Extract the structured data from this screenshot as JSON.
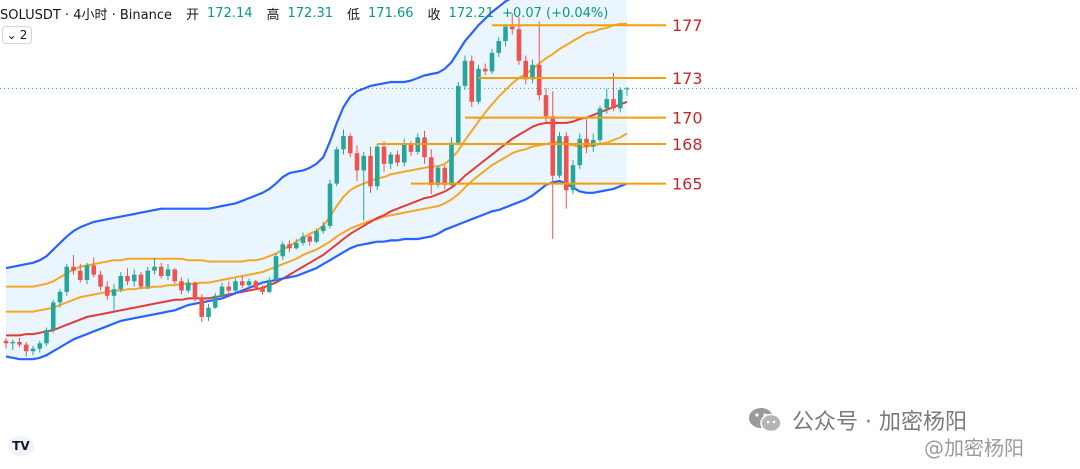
{
  "header": {
    "symbol": "SOLUSDT · 4小时 · Binance",
    "open_label": "开",
    "open": "172.14",
    "high_label": "高",
    "high": "172.31",
    "low_label": "低",
    "low": "171.66",
    "close_label": "收",
    "close": "172.21",
    "change": "+0.07 (+0.04%)",
    "indicator_count": "2"
  },
  "watermark": {
    "line1": "公众号 · 加密杨阳",
    "line2": "@加密杨阳"
  },
  "logo": "TV",
  "colors": {
    "up": "#26a69a",
    "down": "#ef5350",
    "upper_band": "#2962ff",
    "mid_band": "#f5a623",
    "ema": "#e53935",
    "levels": "#f59e0b",
    "level_text": "#c62828",
    "band_fill": "#e3f2fd",
    "price_line": "#26a69a"
  },
  "chart_data": {
    "type": "candlestick",
    "ylim": [
      151,
      180
    ],
    "current_price": 172.21,
    "levels": [
      {
        "label": "177",
        "value": 177,
        "start_index": 72
      },
      {
        "label": "173",
        "value": 173,
        "start_index": 70
      },
      {
        "label": "170",
        "value": 170,
        "start_index": 68
      },
      {
        "label": "168",
        "value": 168,
        "start_index": 55
      },
      {
        "label": "165",
        "value": 165,
        "start_index": 60
      }
    ],
    "candles": [
      [
        153.1,
        153.3,
        152.5,
        152.9
      ],
      [
        152.9,
        153.2,
        152.4,
        153.0
      ],
      [
        153.0,
        153.3,
        152.6,
        152.8
      ],
      [
        152.8,
        153.0,
        151.9,
        152.3
      ],
      [
        152.3,
        152.7,
        152.0,
        152.5
      ],
      [
        152.5,
        153.1,
        152.2,
        152.9
      ],
      [
        152.9,
        154.1,
        152.7,
        153.9
      ],
      [
        153.9,
        156.2,
        153.7,
        156.0
      ],
      [
        156.0,
        157.0,
        155.6,
        156.8
      ],
      [
        156.8,
        158.9,
        156.5,
        158.7
      ],
      [
        158.7,
        159.6,
        158.1,
        158.4
      ],
      [
        158.4,
        158.9,
        157.5,
        157.7
      ],
      [
        157.7,
        159.0,
        157.4,
        158.8
      ],
      [
        158.8,
        159.4,
        157.9,
        158.1
      ],
      [
        158.1,
        158.4,
        156.9,
        157.2
      ],
      [
        157.2,
        157.6,
        156.2,
        156.5
      ],
      [
        156.5,
        157.4,
        155.2,
        157.0
      ],
      [
        157.0,
        158.3,
        156.8,
        158.0
      ],
      [
        158.0,
        158.6,
        157.3,
        157.6
      ],
      [
        157.6,
        158.5,
        157.2,
        158.1
      ],
      [
        158.1,
        158.3,
        157.0,
        157.2
      ],
      [
        157.2,
        158.7,
        157.0,
        158.4
      ],
      [
        158.4,
        159.4,
        158.1,
        158.7
      ],
      [
        158.7,
        159.0,
        157.8,
        158.0
      ],
      [
        158.0,
        158.9,
        157.7,
        158.5
      ],
      [
        158.5,
        158.6,
        157.4,
        157.6
      ],
      [
        157.6,
        157.9,
        156.6,
        156.9
      ],
      [
        156.9,
        157.8,
        156.7,
        157.5
      ],
      [
        157.5,
        157.6,
        156.1,
        156.3
      ],
      [
        156.3,
        156.6,
        154.5,
        154.9
      ],
      [
        154.9,
        155.9,
        154.6,
        155.6
      ],
      [
        155.6,
        156.7,
        155.5,
        156.5
      ],
      [
        156.5,
        157.5,
        156.3,
        157.2
      ],
      [
        157.2,
        157.6,
        156.6,
        156.9
      ],
      [
        156.9,
        157.8,
        156.7,
        157.6
      ],
      [
        157.6,
        158.0,
        157.1,
        157.3
      ],
      [
        157.3,
        157.8,
        157.1,
        157.6
      ],
      [
        157.6,
        157.7,
        156.9,
        157.1
      ],
      [
        157.1,
        157.3,
        156.6,
        156.8
      ],
      [
        156.8,
        157.9,
        156.7,
        157.7
      ],
      [
        157.7,
        159.7,
        157.5,
        159.5
      ],
      [
        159.5,
        160.6,
        159.2,
        160.4
      ],
      [
        160.4,
        160.7,
        159.8,
        160.1
      ],
      [
        160.1,
        160.8,
        160.0,
        160.5
      ],
      [
        160.5,
        161.3,
        160.3,
        161.0
      ],
      [
        161.0,
        161.1,
        160.3,
        160.6
      ],
      [
        160.6,
        161.6,
        160.5,
        161.4
      ],
      [
        161.4,
        162.1,
        161.2,
        161.8
      ],
      [
        161.8,
        165.3,
        161.6,
        165.0
      ],
      [
        165.0,
        167.8,
        164.8,
        167.6
      ],
      [
        167.6,
        169.1,
        167.2,
        168.6
      ],
      [
        168.6,
        168.8,
        167.0,
        167.3
      ],
      [
        167.3,
        167.9,
        165.2,
        166.0
      ],
      [
        166.0,
        167.4,
        162.2,
        167.1
      ],
      [
        167.1,
        167.8,
        164.3,
        164.8
      ],
      [
        164.8,
        168.0,
        164.5,
        167.8
      ],
      [
        167.8,
        168.2,
        165.9,
        166.5
      ],
      [
        166.5,
        167.4,
        166.1,
        167.2
      ],
      [
        167.2,
        167.5,
        166.3,
        166.6
      ],
      [
        166.6,
        168.4,
        166.3,
        168.0
      ],
      [
        168.0,
        168.2,
        167.1,
        167.4
      ],
      [
        167.4,
        168.8,
        167.2,
        168.5
      ],
      [
        168.5,
        169.0,
        166.5,
        167.0
      ],
      [
        167.0,
        167.6,
        164.2,
        164.9
      ],
      [
        164.9,
        166.4,
        164.7,
        166.2
      ],
      [
        166.2,
        166.4,
        164.6,
        164.9
      ],
      [
        164.9,
        168.5,
        164.7,
        168.1
      ],
      [
        168.1,
        172.7,
        167.9,
        172.4
      ],
      [
        172.4,
        174.7,
        172.1,
        174.3
      ],
      [
        174.3,
        174.7,
        170.8,
        171.2
      ],
      [
        171.2,
        174.0,
        171.0,
        173.7
      ],
      [
        173.7,
        174.1,
        173.2,
        173.5
      ],
      [
        173.5,
        175.2,
        173.3,
        174.9
      ],
      [
        174.9,
        176.1,
        174.6,
        175.8
      ],
      [
        175.8,
        177.1,
        175.4,
        176.9
      ],
      [
        176.9,
        177.9,
        176.3,
        176.7
      ],
      [
        176.7,
        177.6,
        174.0,
        174.3
      ],
      [
        174.3,
        174.7,
        172.5,
        172.9
      ],
      [
        172.9,
        174.4,
        172.6,
        174.0
      ],
      [
        174.0,
        177.3,
        171.3,
        171.7
      ],
      [
        171.7,
        172.2,
        169.6,
        170.1
      ],
      [
        170.1,
        172.0,
        160.8,
        165.6
      ],
      [
        165.6,
        168.9,
        165.4,
        168.6
      ],
      [
        168.6,
        168.9,
        163.1,
        164.5
      ],
      [
        164.5,
        166.8,
        164.2,
        166.4
      ],
      [
        166.4,
        168.8,
        166.1,
        168.4
      ],
      [
        168.4,
        169.9,
        167.3,
        167.8
      ],
      [
        167.8,
        168.8,
        167.4,
        168.3
      ],
      [
        168.3,
        170.9,
        168.0,
        170.7
      ],
      [
        170.7,
        172.2,
        170.3,
        171.4
      ],
      [
        171.4,
        173.4,
        170.5,
        170.7
      ],
      [
        170.7,
        172.3,
        170.4,
        172.1
      ],
      [
        172.14,
        172.31,
        171.66,
        172.21
      ]
    ],
    "bollinger_upper": [
      158.6,
      158.7,
      158.8,
      158.9,
      159.0,
      159.2,
      159.5,
      160.0,
      160.5,
      161.0,
      161.4,
      161.7,
      161.9,
      162.1,
      162.2,
      162.3,
      162.4,
      162.5,
      162.6,
      162.7,
      162.8,
      162.9,
      163.0,
      163.1,
      163.1,
      163.1,
      163.1,
      163.1,
      163.1,
      163.1,
      163.1,
      163.2,
      163.3,
      163.4,
      163.5,
      163.7,
      163.9,
      164.1,
      164.3,
      164.6,
      165.0,
      165.5,
      165.8,
      165.9,
      166.0,
      166.2,
      166.5,
      167.0,
      168.2,
      169.6,
      170.8,
      171.6,
      172.0,
      172.2,
      172.4,
      172.5,
      172.6,
      172.7,
      172.7,
      172.7,
      172.8,
      173.0,
      173.2,
      173.3,
      173.4,
      173.7,
      174.2,
      175.0,
      175.8,
      176.4,
      177.0,
      177.5,
      178.0,
      178.4,
      178.8,
      179.1,
      179.2,
      179.3,
      179.4,
      179.5,
      179.6,
      179.8,
      179.9,
      179.9,
      179.9,
      179.9,
      179.9,
      179.9,
      179.9,
      180.0,
      180.0,
      180.0,
      179.9
    ],
    "bollinger_mid": [
      157.2,
      157.2,
      157.2,
      157.2,
      157.2,
      157.3,
      157.4,
      157.6,
      157.9,
      158.2,
      158.5,
      158.7,
      158.8,
      158.9,
      159.0,
      159.1,
      159.2,
      159.2,
      159.3,
      159.3,
      159.3,
      159.3,
      159.3,
      159.3,
      159.3,
      159.3,
      159.3,
      159.2,
      159.2,
      159.2,
      159.1,
      159.1,
      159.1,
      159.1,
      159.1,
      159.1,
      159.2,
      159.2,
      159.3,
      159.5,
      159.7,
      160.0,
      160.3,
      160.6,
      160.9,
      161.2,
      161.4,
      161.8,
      162.5,
      163.3,
      164.0,
      164.5,
      164.8,
      165.0,
      165.2,
      165.4,
      165.5,
      165.7,
      165.8,
      165.9,
      166.0,
      166.1,
      166.2,
      166.3,
      166.3,
      166.5,
      166.9,
      167.5,
      168.3,
      169.0,
      169.7,
      170.4,
      171.0,
      171.6,
      172.1,
      172.6,
      173.0,
      173.3,
      173.7,
      174.1,
      174.5,
      174.8,
      175.2,
      175.5,
      175.8,
      176.1,
      176.4,
      176.5,
      176.7,
      176.8,
      177.0,
      177.1,
      177.1
    ],
    "bollinger_lower": [
      151.9,
      151.8,
      151.7,
      151.7,
      151.7,
      151.8,
      152.0,
      152.3,
      152.6,
      152.9,
      153.2,
      153.4,
      153.6,
      153.8,
      154.0,
      154.2,
      154.4,
      154.6,
      154.7,
      154.8,
      154.9,
      155.0,
      155.1,
      155.2,
      155.3,
      155.4,
      155.6,
      155.8,
      155.9,
      156.0,
      156.1,
      156.2,
      156.3,
      156.5,
      156.7,
      156.9,
      157.1,
      157.3,
      157.5,
      157.6,
      157.7,
      157.8,
      157.9,
      158.0,
      158.2,
      158.4,
      158.6,
      158.9,
      159.2,
      159.5,
      159.8,
      160.1,
      160.3,
      160.4,
      160.5,
      160.6,
      160.6,
      160.7,
      160.7,
      160.8,
      160.8,
      160.8,
      160.9,
      161.0,
      161.2,
      161.5,
      161.7,
      161.9,
      162.1,
      162.3,
      162.5,
      162.7,
      162.9,
      163.0,
      163.2,
      163.4,
      163.6,
      163.8,
      164.1,
      164.5,
      164.9,
      165.1,
      165.2,
      165.0,
      164.7,
      164.4,
      164.3,
      164.3,
      164.4,
      164.5,
      164.6,
      164.8,
      165.0
    ],
    "ema": [
      153.5,
      153.5,
      153.5,
      153.6,
      153.6,
      153.7,
      153.8,
      153.9,
      154.1,
      154.3,
      154.5,
      154.7,
      154.9,
      155.0,
      155.1,
      155.2,
      155.3,
      155.4,
      155.5,
      155.6,
      155.7,
      155.8,
      155.9,
      156.0,
      156.1,
      156.2,
      156.2,
      156.3,
      156.3,
      156.3,
      156.3,
      156.4,
      156.5,
      156.6,
      156.7,
      156.8,
      156.9,
      157.0,
      157.1,
      157.3,
      157.5,
      157.8,
      158.1,
      158.4,
      158.7,
      159.0,
      159.3,
      159.6,
      160.0,
      160.4,
      160.8,
      161.2,
      161.5,
      161.8,
      162.1,
      162.4,
      162.6,
      162.9,
      163.1,
      163.3,
      163.5,
      163.7,
      163.9,
      164.0,
      164.2,
      164.4,
      164.7,
      165.1,
      165.6,
      166.0,
      166.4,
      166.8,
      167.2,
      167.6,
      168.0,
      168.4,
      168.7,
      169.0,
      169.3,
      169.5,
      169.6,
      169.6,
      169.6,
      169.6,
      169.7,
      169.9,
      170.0,
      170.2,
      170.4,
      170.6,
      170.8,
      171.0,
      171.2
    ],
    "ma_mid_lower": [
      155.3,
      155.3,
      155.3,
      155.3,
      155.3,
      155.4,
      155.5,
      155.6,
      155.8,
      156.0,
      156.2,
      156.4,
      156.5,
      156.6,
      156.7,
      156.8,
      156.9,
      156.9,
      157.0,
      157.0,
      157.1,
      157.1,
      157.2,
      157.2,
      157.3,
      157.3,
      157.4,
      157.4,
      157.4,
      157.5,
      157.5,
      157.6,
      157.7,
      157.8,
      157.9,
      158.0,
      158.1,
      158.2,
      158.3,
      158.5,
      158.7,
      158.9,
      159.1,
      159.3,
      159.6,
      159.8,
      160.0,
      160.3,
      160.6,
      161.0,
      161.3,
      161.6,
      161.8,
      162.0,
      162.2,
      162.3,
      162.5,
      162.6,
      162.7,
      162.8,
      162.9,
      163.0,
      163.1,
      163.2,
      163.3,
      163.5,
      163.8,
      164.2,
      164.7,
      165.2,
      165.6,
      166.0,
      166.4,
      166.7,
      167.0,
      167.3,
      167.5,
      167.6,
      167.8,
      167.9,
      168.0,
      168.1,
      168.2,
      168.0,
      167.9,
      167.8,
      167.8,
      167.9,
      168.0,
      168.1,
      168.3,
      168.5,
      168.8
    ]
  }
}
